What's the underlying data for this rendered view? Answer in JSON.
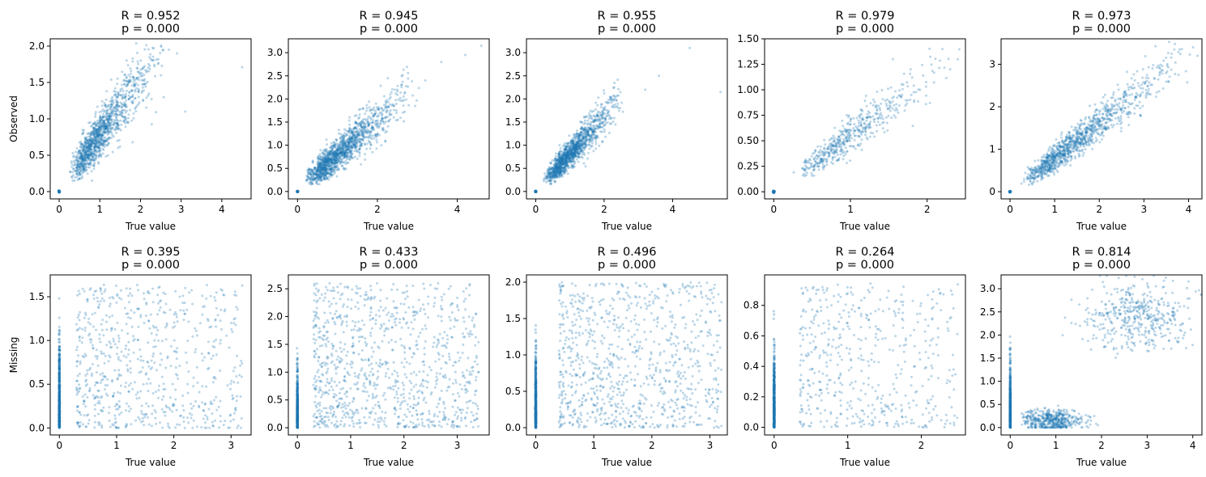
{
  "chart_data": [
    {
      "type": "scatter",
      "row": 0,
      "col": 0,
      "title": [
        "R = 0.952",
        "p = 0.000"
      ],
      "xlabel": "True value",
      "ylabel": "Observed",
      "xlim": [
        -0.22,
        4.72
      ],
      "ylim": [
        -0.1,
        2.1
      ],
      "xticks": [
        0,
        1,
        2,
        3,
        4
      ],
      "yticks": [
        0.0,
        0.5,
        1.0,
        1.5,
        2.0
      ],
      "ytick_labels": [
        "0.0",
        "0.5",
        "1.0",
        "1.5",
        "2.0"
      ],
      "zero_cluster": [
        0,
        0
      ],
      "trend": {
        "x0": 0.3,
        "x1": 2.6,
        "y0": 0.25,
        "y1": 2.0,
        "spread": 0.2,
        "n": 1200
      },
      "outliers": [
        [
          2.7,
          1.95
        ],
        [
          2.9,
          1.9
        ],
        [
          4.5,
          1.71
        ],
        [
          3.1,
          1.1
        ]
      ]
    },
    {
      "type": "scatter",
      "row": 0,
      "col": 1,
      "title": [
        "R = 0.945",
        "p = 0.000"
      ],
      "xlabel": "True value",
      "ylabel": "",
      "xlim": [
        -0.23,
        4.8
      ],
      "ylim": [
        -0.16,
        3.3
      ],
      "xticks": [
        0,
        2,
        4
      ],
      "yticks": [
        0.0,
        0.5,
        1.0,
        1.5,
        2.0,
        2.5,
        3.0
      ],
      "ytick_labels": [
        "0.0",
        "0.5",
        "1.0",
        "1.5",
        "2.0",
        "2.5",
        "3.0"
      ],
      "zero_cluster": [
        0,
        0
      ],
      "trend": {
        "x0": 0.2,
        "x1": 3.0,
        "y0": 0.2,
        "y1": 2.3,
        "spread": 0.22,
        "n": 1400
      },
      "outliers": [
        [
          4.6,
          3.15
        ],
        [
          4.2,
          2.95
        ],
        [
          3.6,
          2.8
        ],
        [
          3.2,
          2.4
        ]
      ]
    },
    {
      "type": "scatter",
      "row": 0,
      "col": 2,
      "title": [
        "R = 0.955",
        "p = 0.000"
      ],
      "xlabel": "True value",
      "ylabel": "",
      "xlim": [
        -0.27,
        5.6
      ],
      "ylim": [
        -0.16,
        3.3
      ],
      "xticks": [
        0,
        2,
        4
      ],
      "yticks": [
        0.0,
        0.5,
        1.0,
        1.5,
        2.0,
        2.5,
        3.0
      ],
      "ytick_labels": [
        "0.0",
        "0.5",
        "1.0",
        "1.5",
        "2.0",
        "2.5",
        "3.0"
      ],
      "zero_cluster": [
        0,
        0
      ],
      "trend": {
        "x0": 0.3,
        "x1": 2.6,
        "y0": 0.25,
        "y1": 2.1,
        "spread": 0.18,
        "n": 1300
      },
      "outliers": [
        [
          4.5,
          3.1
        ],
        [
          5.4,
          2.15
        ],
        [
          3.2,
          2.2
        ],
        [
          3.6,
          2.5
        ]
      ]
    },
    {
      "type": "scatter",
      "row": 0,
      "col": 3,
      "title": [
        "R = 0.979",
        "p = 0.000"
      ],
      "xlabel": "True value",
      "ylabel": "",
      "xlim": [
        -0.12,
        2.5
      ],
      "ylim": [
        -0.07,
        1.5
      ],
      "xticks": [
        0,
        1,
        2
      ],
      "yticks": [
        0.0,
        0.25,
        0.5,
        0.75,
        1.0,
        1.25,
        1.5
      ],
      "ytick_labels": [
        "0.00",
        "0.25",
        "0.50",
        "0.75",
        "1.00",
        "1.25",
        "1.50"
      ],
      "zero_cluster": [
        0,
        0
      ],
      "trend": {
        "x0": 0.3,
        "x1": 2.3,
        "y0": 0.15,
        "y1": 1.3,
        "spread": 0.1,
        "n": 500
      },
      "outliers": [
        [
          2.4,
          1.3
        ],
        [
          2.2,
          1.4
        ],
        [
          2.3,
          1.2
        ]
      ]
    },
    {
      "type": "scatter",
      "row": 0,
      "col": 4,
      "title": [
        "R = 0.973",
        "p = 0.000"
      ],
      "xlabel": "True value",
      "ylabel": "",
      "xlim": [
        -0.2,
        4.3
      ],
      "ylim": [
        -0.17,
        3.6
      ],
      "xticks": [
        0,
        1,
        2,
        3,
        4
      ],
      "yticks": [
        0,
        1,
        2,
        3
      ],
      "ytick_labels": [
        "0",
        "1",
        "2",
        "3"
      ],
      "zero_cluster": [
        0,
        0
      ],
      "trend": {
        "x0": 0.3,
        "x1": 4.0,
        "y0": 0.2,
        "y1": 3.3,
        "spread": 0.22,
        "n": 1100
      },
      "outliers": [
        [
          4.1,
          3.4
        ],
        [
          3.8,
          3.35
        ],
        [
          4.2,
          3.2
        ]
      ]
    },
    {
      "type": "scatter",
      "row": 1,
      "col": 0,
      "title": [
        "R = 0.395",
        "p = 0.000"
      ],
      "xlabel": "True value",
      "ylabel": "Missing",
      "xlim": [
        -0.16,
        3.35
      ],
      "ylim": [
        -0.08,
        1.75
      ],
      "xticks": [
        0,
        1,
        2,
        3
      ],
      "yticks": [
        0.0,
        0.5,
        1.0,
        1.5
      ],
      "ytick_labels": [
        "0.0",
        "0.5",
        "1.0",
        "1.5"
      ],
      "zero_column": {
        "x": 0,
        "ymax": 1.6
      },
      "cloud": {
        "xmin": 0.3,
        "xmax": 3.2,
        "ymin": 0.0,
        "ymax": 1.65,
        "n": 700
      }
    },
    {
      "type": "scatter",
      "row": 1,
      "col": 1,
      "title": [
        "R = 0.433",
        "p = 0.000"
      ],
      "xlabel": "True value",
      "ylabel": "",
      "xlim": [
        -0.17,
        3.6
      ],
      "ylim": [
        -0.13,
        2.75
      ],
      "xticks": [
        0,
        1,
        2,
        3
      ],
      "yticks": [
        0.0,
        0.5,
        1.0,
        1.5,
        2.0,
        2.5
      ],
      "ytick_labels": [
        "0.0",
        "0.5",
        "1.0",
        "1.5",
        "2.0",
        "2.5"
      ],
      "zero_column": {
        "x": 0,
        "ymax": 1.6
      },
      "cloud": {
        "xmin": 0.3,
        "xmax": 3.4,
        "ymin": 0.0,
        "ymax": 2.6,
        "n": 1000
      }
    },
    {
      "type": "scatter",
      "row": 1,
      "col": 2,
      "title": [
        "R = 0.496",
        "p = 0.000"
      ],
      "xlabel": "True value",
      "ylabel": "",
      "xlim": [
        -0.16,
        3.3
      ],
      "ylim": [
        -0.1,
        2.1
      ],
      "xticks": [
        0,
        1,
        2,
        3
      ],
      "yticks": [
        0.0,
        0.5,
        1.0,
        1.5,
        2.0
      ],
      "ytick_labels": [
        "0.0",
        "0.5",
        "1.0",
        "1.5",
        "2.0"
      ],
      "zero_column": {
        "x": 0,
        "ymax": 1.6
      },
      "cloud": {
        "xmin": 0.4,
        "xmax": 3.2,
        "ymin": 0.0,
        "ymax": 2.0,
        "n": 900
      }
    },
    {
      "type": "scatter",
      "row": 1,
      "col": 3,
      "title": [
        "R = 0.264",
        "p = 0.000"
      ],
      "xlabel": "True value",
      "ylabel": "",
      "xlim": [
        -0.13,
        2.6
      ],
      "ylim": [
        -0.05,
        1.0
      ],
      "xticks": [
        0,
        1,
        2
      ],
      "yticks": [
        0.0,
        0.2,
        0.4,
        0.6,
        0.8
      ],
      "ytick_labels": [
        "0.0",
        "0.2",
        "0.4",
        "0.6",
        "0.8"
      ],
      "zero_column": {
        "x": 0,
        "ymax": 0.8
      },
      "cloud": {
        "xmin": 0.35,
        "xmax": 2.5,
        "ymin": 0.0,
        "ymax": 0.95,
        "n": 500
      }
    },
    {
      "type": "scatter",
      "row": 1,
      "col": 4,
      "title": [
        "R = 0.814",
        "p = 0.000"
      ],
      "xlabel": "True value",
      "ylabel": "",
      "xlim": [
        -0.2,
        4.2
      ],
      "ylim": [
        -0.16,
        3.3
      ],
      "xticks": [
        0,
        1,
        2,
        3,
        4
      ],
      "yticks": [
        0.0,
        0.5,
        1.0,
        1.5,
        2.0,
        2.5,
        3.0
      ],
      "ytick_labels": [
        "0.0",
        "0.5",
        "1.0",
        "1.5",
        "2.0",
        "2.5",
        "3.0"
      ],
      "zero_column": {
        "x": 0,
        "ymax": 2.2
      },
      "clusters": [
        {
          "cx": 0.9,
          "cy": 0.15,
          "sx": 0.35,
          "sy": 0.12,
          "n": 500
        },
        {
          "cx": 2.8,
          "cy": 2.4,
          "sx": 0.55,
          "sy": 0.35,
          "n": 450
        }
      ]
    }
  ],
  "colors": {
    "points": "#1f77b4",
    "axes": "#000000",
    "background": "#ffffff"
  }
}
